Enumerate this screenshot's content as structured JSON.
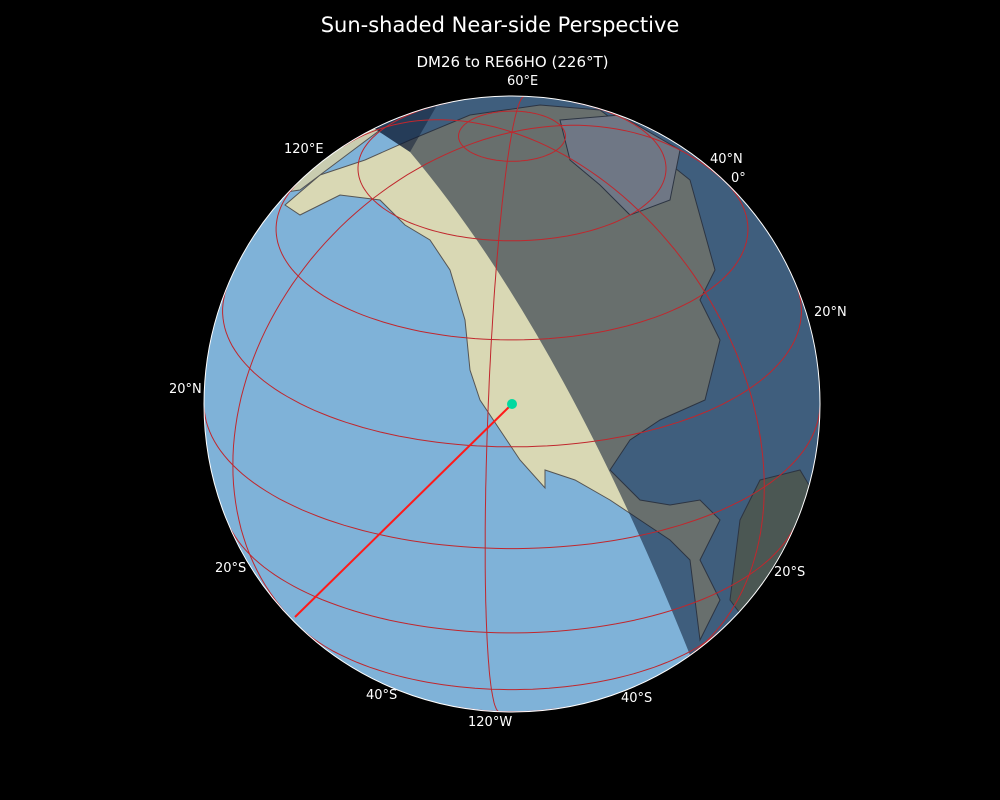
{
  "title": "Sun-shaded Near-side Perspective",
  "subtitle": "DM26 to RE66HO (226°T)",
  "map": {
    "projection": "near-side perspective",
    "center_lat": 28,
    "center_lon": -115,
    "graticule_step_deg": 20,
    "graticule_color": "#c0272d",
    "ocean_color": "#7fb2d8",
    "land_color": "#d9d8b4",
    "night_shading": true,
    "path_color": "#ff1a1a",
    "origin_marker_color": "#00d9a0",
    "origin": "DM26",
    "destination": "RE66HO",
    "bearing_deg": 226
  },
  "labels": {
    "lon_60e": "60°E",
    "lon_120e": "120°E",
    "lat_40n_right": "40°N",
    "lon_0": "0°",
    "lat_20n_right": "20°N",
    "lat_20n_left": "20°N",
    "lat_20s_left": "20°S",
    "lat_20s_right": "20°S",
    "lat_40s_left": "40°S",
    "lat_40s_right": "40°S",
    "lon_120w": "120°W"
  }
}
